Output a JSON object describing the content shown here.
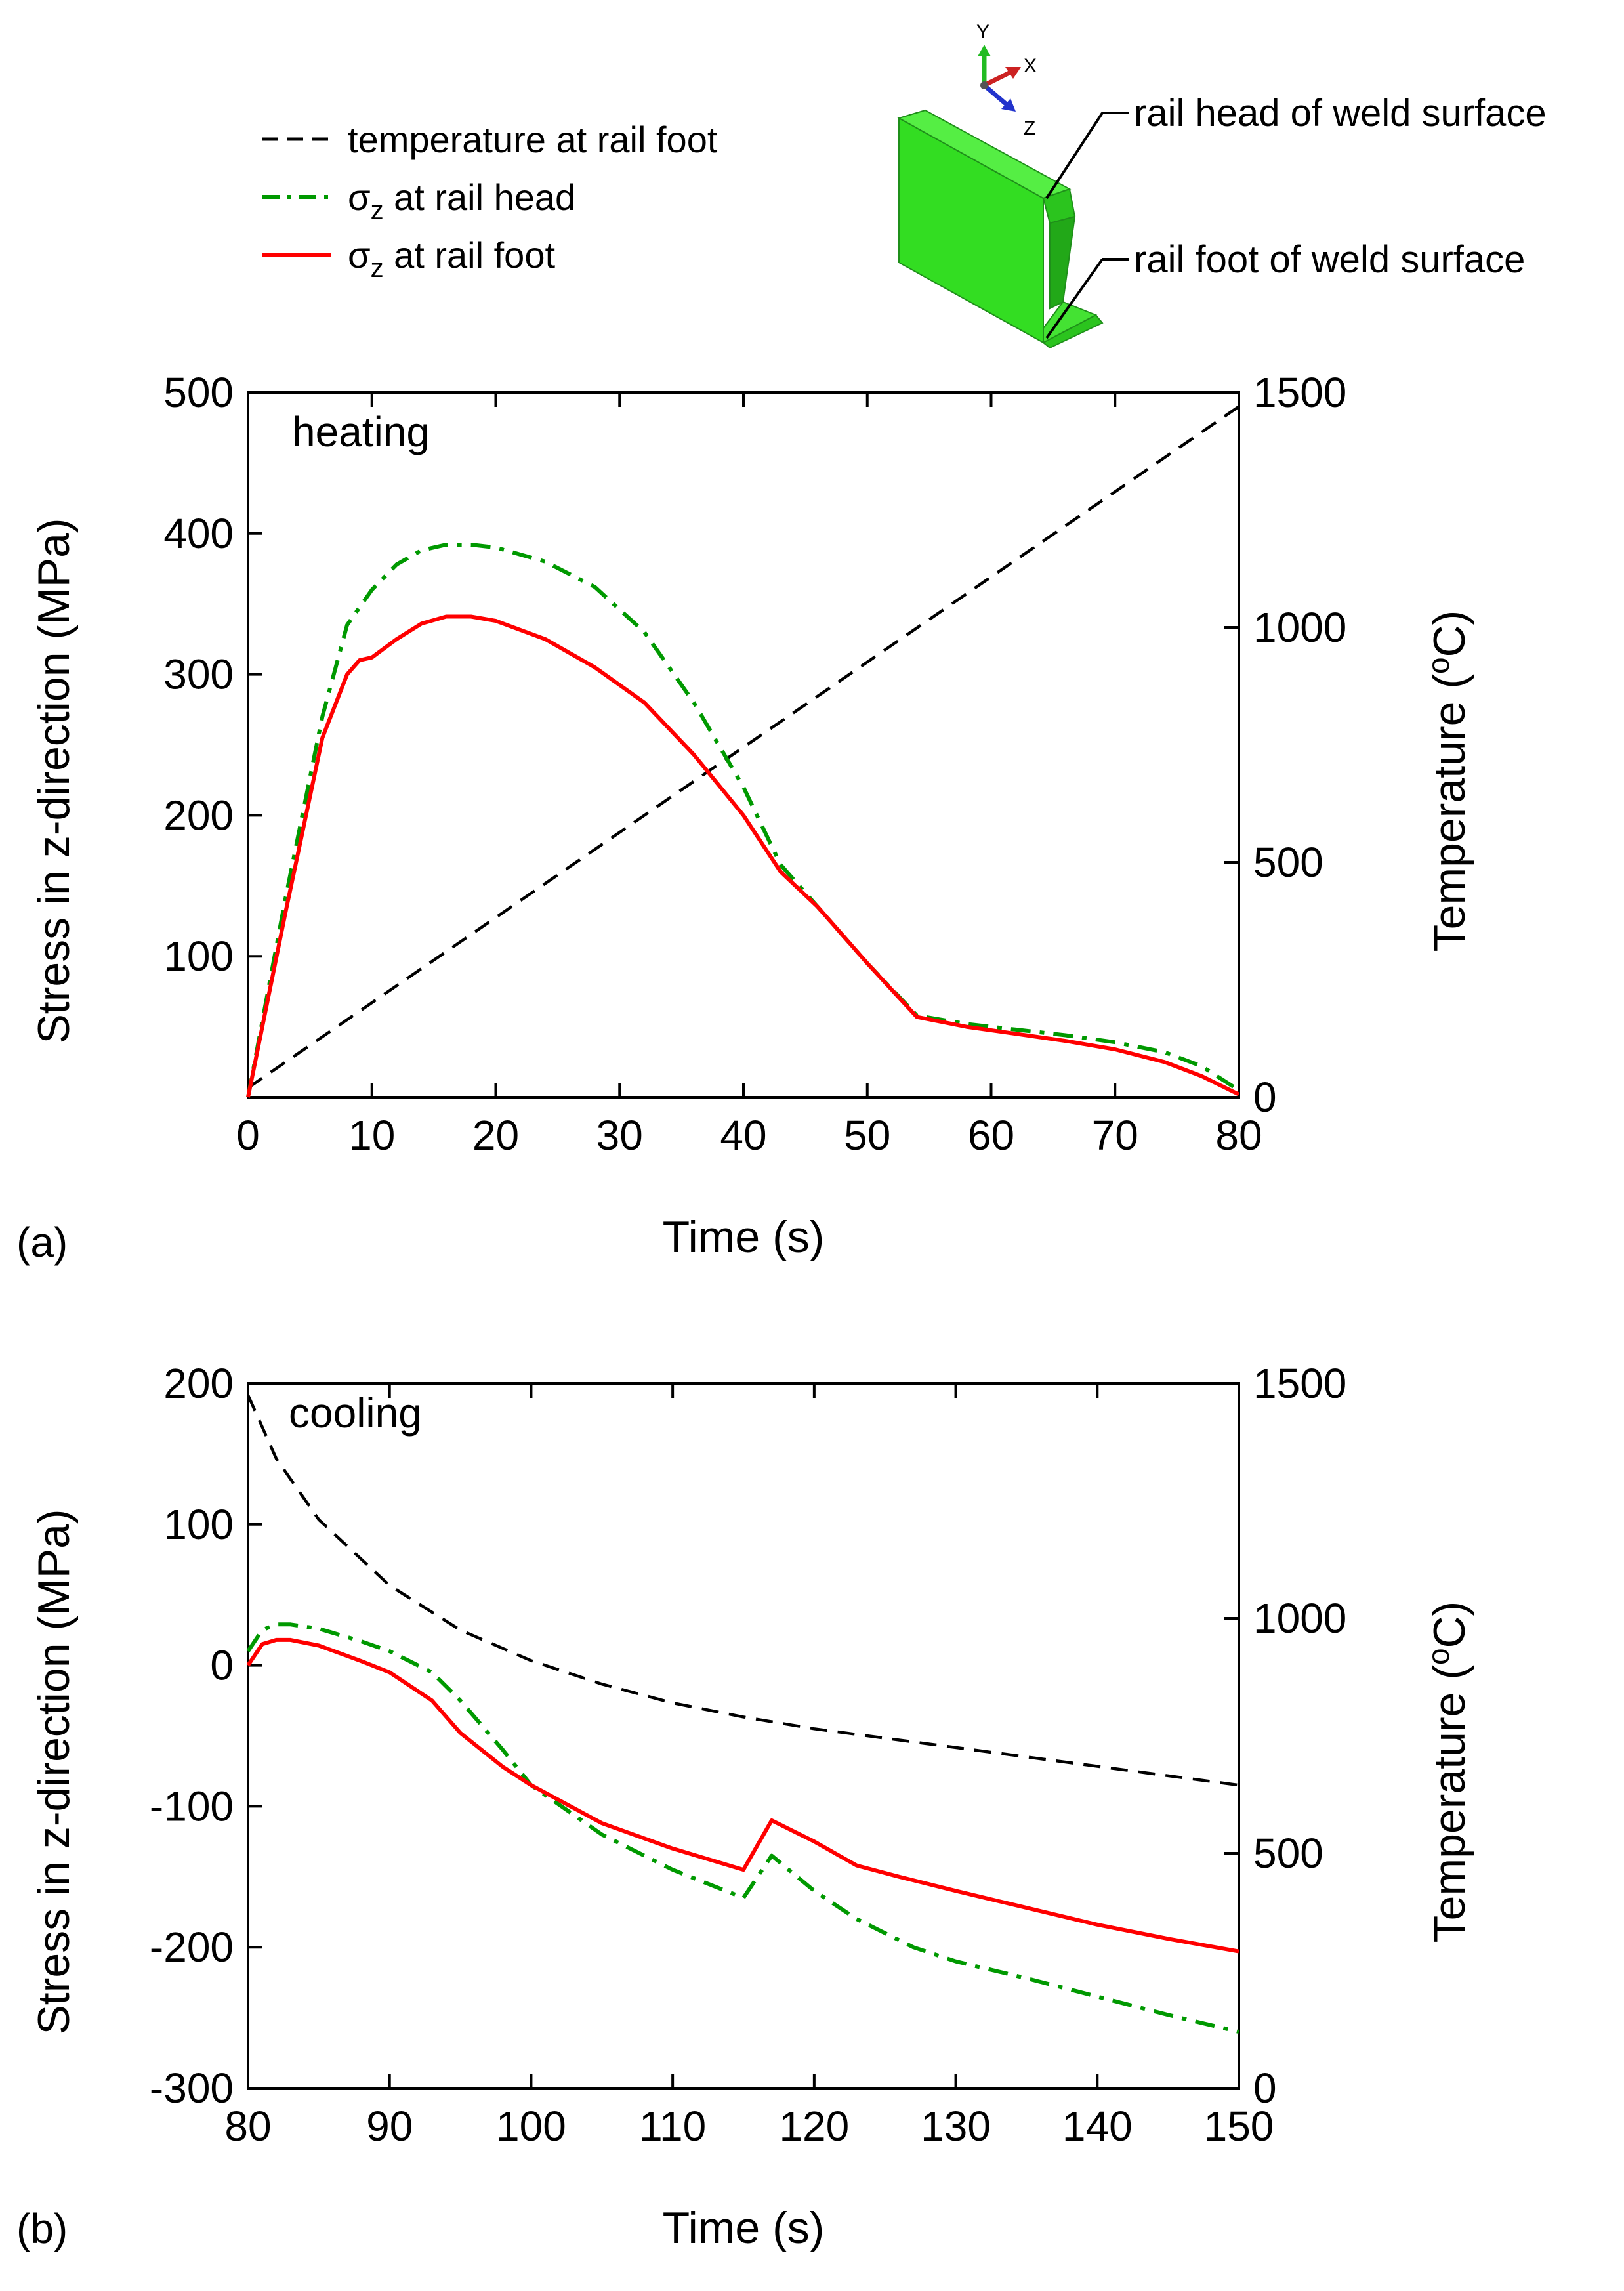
{
  "legend": {
    "items": [
      {
        "id": "temp",
        "label": "temperature at rail foot",
        "color": "#000000",
        "style": "dashed"
      },
      {
        "id": "head",
        "label_symbol": "σ",
        "label_sub": "z",
        "label_rest": " at rail head",
        "color": "#009900",
        "style": "dashdot"
      },
      {
        "id": "foot",
        "label_symbol": "σ",
        "label_sub": "z",
        "label_rest": " at rail foot",
        "color": "#ff0000",
        "style": "solid"
      }
    ]
  },
  "diagram": {
    "axis_y": "Y",
    "axis_x": "X",
    "axis_z": "Z",
    "callout_head": "rail head of weld surface",
    "callout_foot": "rail foot of weld surface",
    "body_color": "#33dd22"
  },
  "chart_data": [
    {
      "id": "a",
      "type": "line",
      "panel_label": "(a)",
      "annotation": "heating",
      "xlabel": "Time (s)",
      "ylabel": "Stress in z-direction (MPa)",
      "y2label_prefix": "Temperature (",
      "y2label_sup": "o",
      "y2label_suffix": "C)",
      "xlim": [
        0,
        80
      ],
      "ylim": [
        0,
        500
      ],
      "y2lim": [
        0,
        1500
      ],
      "xticks": [
        0,
        10,
        20,
        30,
        40,
        50,
        60,
        70,
        80
      ],
      "yticks": [
        100,
        200,
        300,
        400,
        500
      ],
      "y2ticks": [
        0,
        500,
        1000,
        1500
      ],
      "series": [
        {
          "name": "temperature at rail foot",
          "axis": "right",
          "color": "#000000",
          "style": "dashed",
          "x": [
            0,
            80
          ],
          "y": [
            20,
            1470
          ]
        },
        {
          "name": "σz at rail head",
          "axis": "left",
          "color": "#009900",
          "style": "dashdot",
          "x": [
            0,
            3,
            6,
            8,
            10,
            12,
            14,
            16,
            18,
            20,
            24,
            28,
            32,
            36,
            40,
            43,
            46,
            50,
            54,
            58,
            62,
            66,
            70,
            74,
            77,
            80
          ],
          "y": [
            0,
            140,
            270,
            335,
            360,
            378,
            388,
            392,
            392,
            390,
            380,
            362,
            330,
            280,
            220,
            165,
            135,
            95,
            58,
            52,
            48,
            44,
            39,
            32,
            22,
            5
          ]
        },
        {
          "name": "σz at rail foot",
          "axis": "left",
          "color": "#ff0000",
          "style": "solid",
          "x": [
            0,
            3,
            6,
            8,
            9,
            10,
            12,
            14,
            16,
            18,
            20,
            24,
            28,
            32,
            36,
            40,
            43,
            46,
            50,
            54,
            58,
            62,
            66,
            70,
            74,
            77,
            80
          ],
          "y": [
            0,
            130,
            255,
            300,
            310,
            312,
            325,
            336,
            341,
            341,
            338,
            325,
            305,
            280,
            243,
            200,
            160,
            135,
            95,
            57,
            50,
            45,
            40,
            34,
            25,
            15,
            2
          ]
        }
      ]
    },
    {
      "id": "b",
      "type": "line",
      "panel_label": "(b)",
      "annotation": "cooling",
      "xlabel": "Time (s)",
      "ylabel": "Stress in z-direction (MPa)",
      "y2label_prefix": "Temperature (",
      "y2label_sup": "o",
      "y2label_suffix": "C)",
      "xlim": [
        80,
        150
      ],
      "ylim": [
        -300,
        200
      ],
      "y2lim": [
        0,
        1500
      ],
      "xticks": [
        80,
        90,
        100,
        110,
        120,
        130,
        140,
        150
      ],
      "yticks": [
        -300,
        -200,
        -100,
        0,
        100,
        200
      ],
      "y2ticks": [
        0,
        500,
        1000,
        1500
      ],
      "series": [
        {
          "name": "temperature at rail foot",
          "axis": "right",
          "color": "#000000",
          "style": "dashed",
          "x": [
            80,
            82,
            85,
            90,
            95,
            100,
            105,
            110,
            115,
            120,
            125,
            130,
            135,
            140,
            145,
            150
          ],
          "y": [
            1475,
            1340,
            1210,
            1070,
            975,
            910,
            860,
            820,
            790,
            765,
            745,
            725,
            705,
            685,
            665,
            645
          ]
        },
        {
          "name": "σz at rail head",
          "axis": "left",
          "color": "#009900",
          "style": "dashdot",
          "x": [
            80,
            81,
            82,
            83,
            85,
            88,
            90,
            93,
            95,
            98,
            100,
            105,
            110,
            115,
            117,
            120,
            123,
            127,
            130,
            135,
            140,
            145,
            150
          ],
          "y": [
            10,
            25,
            29,
            29,
            26,
            17,
            10,
            -5,
            -25,
            -60,
            -85,
            -120,
            -145,
            -165,
            -135,
            -160,
            -180,
            -200,
            -210,
            -222,
            -235,
            -248,
            -260
          ]
        },
        {
          "name": "σz at rail foot",
          "axis": "left",
          "color": "#ff0000",
          "style": "solid",
          "x": [
            80,
            81,
            82,
            83,
            85,
            88,
            90,
            93,
            95,
            98,
            100,
            105,
            110,
            115,
            117,
            120,
            123,
            126,
            130,
            135,
            140,
            145,
            150
          ],
          "y": [
            0,
            15,
            18,
            18,
            14,
            3,
            -5,
            -25,
            -48,
            -72,
            -85,
            -112,
            -130,
            -145,
            -110,
            -125,
            -142,
            -150,
            -160,
            -172,
            -184,
            -194,
            -203
          ]
        }
      ]
    }
  ]
}
